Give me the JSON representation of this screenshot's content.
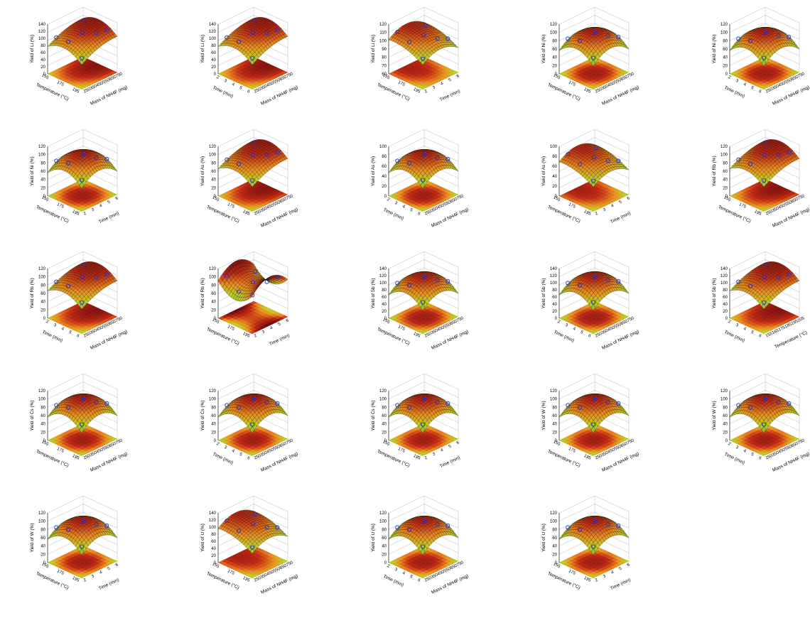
{
  "chart_data": [
    {
      "type": "surface3d",
      "zlabel": "Yield of Li (%)",
      "z_ticks": [
        "0",
        "20",
        "40",
        "60",
        "80",
        "100",
        "120",
        "140"
      ],
      "left_label": "Temperature (°C)",
      "left_ticks": [
        "155",
        "175",
        "195"
      ],
      "right_label": "Mass of NH4F (mg)",
      "right_ticks": [
        "250",
        "350",
        "450",
        "550",
        "650",
        "750"
      ],
      "peak_position": "right",
      "has_contour": true
    },
    {
      "type": "surface3d",
      "zlabel": "Yield of Li (%)",
      "z_ticks": [
        "0",
        "20",
        "40",
        "60",
        "80",
        "100",
        "120",
        "140"
      ],
      "left_label": "Time (min)",
      "left_ticks": [
        "2",
        "3",
        "4",
        "5",
        "6"
      ],
      "right_label": "Mass of NH4F (mg)",
      "right_ticks": [
        "250",
        "350",
        "450",
        "550",
        "650",
        "750"
      ],
      "peak_position": "right",
      "has_contour": true
    },
    {
      "type": "surface3d",
      "zlabel": "Yield of Li (%)",
      "z_ticks": [
        "60",
        "70",
        "80",
        "90",
        "100",
        "110",
        "120"
      ],
      "left_label": "Temperature (°C)",
      "left_ticks": [
        "155",
        "175",
        "195"
      ],
      "right_label": "Time (min)",
      "right_ticks": [
        "2",
        "3",
        "4",
        "5",
        "6"
      ],
      "peak_position": "left",
      "has_contour": true
    },
    {
      "type": "surface3d",
      "zlabel": "Yield of Ni (%)",
      "z_ticks": [
        "0",
        "20",
        "40",
        "60",
        "80",
        "100",
        "120"
      ],
      "left_label": "Temperature (°C)",
      "left_ticks": [
        "155",
        "175",
        "195"
      ],
      "right_label": "Mass of NH4F (mg)",
      "right_ticks": [
        "250",
        "350",
        "450",
        "550",
        "650",
        "750"
      ],
      "peak_position": "center",
      "has_contour": true
    },
    {
      "type": "surface3d",
      "zlabel": "Yield of Ni (%)",
      "z_ticks": [
        "0",
        "20",
        "40",
        "60",
        "80",
        "100",
        "120"
      ],
      "left_label": "Time (min)",
      "left_ticks": [
        "2",
        "3",
        "4",
        "5",
        "6"
      ],
      "right_label": "Mass of NH4F (mg)",
      "right_ticks": [
        "250",
        "350",
        "450",
        "550",
        "650",
        "750"
      ],
      "peak_position": "center",
      "has_contour": true
    },
    {
      "type": "surface3d",
      "zlabel": "Yield of Ni (%)",
      "z_ticks": [
        "0",
        "20",
        "40",
        "60",
        "80",
        "100",
        "120"
      ],
      "left_label": "Temperature (°C)",
      "left_ticks": [
        "155",
        "175",
        "195"
      ],
      "right_label": "Time (min)",
      "right_ticks": [
        "2",
        "3",
        "4",
        "5",
        "6"
      ],
      "peak_position": "center",
      "has_contour": true
    },
    {
      "type": "surface3d",
      "zlabel": "Yield of As (%)",
      "z_ticks": [
        "0",
        "20",
        "40",
        "60",
        "80",
        "100",
        "120"
      ],
      "left_label": "Temperature (°C)",
      "left_ticks": [
        "155",
        "175",
        "195"
      ],
      "right_label": "Mass of NH4F (mg)",
      "right_ticks": [
        "250",
        "350",
        "450",
        "550",
        "650",
        "750"
      ],
      "peak_position": "right",
      "has_contour": true
    },
    {
      "type": "surface3d",
      "zlabel": "Yield of As (%)",
      "z_ticks": [
        "0",
        "20",
        "40",
        "60",
        "80",
        "100"
      ],
      "left_label": "Time (min)",
      "left_ticks": [
        "2",
        "3",
        "4",
        "5",
        "6"
      ],
      "right_label": "Mass of NH4F (mg)",
      "right_ticks": [
        "250",
        "350",
        "450",
        "550",
        "650",
        "750"
      ],
      "peak_position": "center",
      "has_contour": true
    },
    {
      "type": "surface3d",
      "zlabel": "Yield of As (%)",
      "z_ticks": [
        "0",
        "20",
        "40",
        "60",
        "80",
        "100"
      ],
      "left_label": "Temperature (°C)",
      "left_ticks": [
        "155",
        "175",
        "195"
      ],
      "right_label": "Time (min)",
      "right_ticks": [
        "2",
        "3",
        "4",
        "5",
        "6"
      ],
      "peak_position": "left",
      "has_contour": true
    },
    {
      "type": "surface3d",
      "zlabel": "Yield of Rb (%)",
      "z_ticks": [
        "0",
        "20",
        "40",
        "60",
        "80",
        "100",
        "120"
      ],
      "left_label": "Temperature (°C)",
      "left_ticks": [
        "155",
        "175",
        "195"
      ],
      "right_label": "Mass of NH4F (mg)",
      "right_ticks": [
        "250",
        "350",
        "450",
        "550",
        "650",
        "750"
      ],
      "peak_position": "right",
      "has_contour": true
    },
    {
      "type": "surface3d",
      "zlabel": "Yield of Rb (%)",
      "z_ticks": [
        "0",
        "20",
        "40",
        "60",
        "80",
        "100",
        "120"
      ],
      "left_label": "Time (min)",
      "left_ticks": [
        "2",
        "3",
        "4",
        "5",
        "6"
      ],
      "right_label": "Mass of NH4F (mg)",
      "right_ticks": [
        "250",
        "350",
        "450",
        "550",
        "650",
        "750"
      ],
      "peak_position": "right",
      "has_contour": true
    },
    {
      "type": "surface3d",
      "zlabel": "Yield of Rb (%)",
      "z_ticks": [
        "0",
        "20",
        "40",
        "60",
        "80",
        "100",
        "120"
      ],
      "left_label": "Temperature (°C)",
      "left_ticks": [
        "155",
        "175",
        "195"
      ],
      "right_label": "Time (min)",
      "right_ticks": [
        "2",
        "3",
        "4",
        "5",
        "6"
      ],
      "peak_position": "saddle",
      "has_contour": true
    },
    {
      "type": "surface3d",
      "zlabel": "Yield of Sb (%)",
      "z_ticks": [
        "0",
        "20",
        "40",
        "60",
        "80",
        "100",
        "120",
        "140"
      ],
      "left_label": "Temperature (°C)",
      "left_ticks": [
        "155",
        "175",
        "195"
      ],
      "right_label": "Mass of NH4F (mg)",
      "right_ticks": [
        "250",
        "350",
        "450",
        "550",
        "650",
        "750"
      ],
      "peak_position": "center",
      "has_contour": true
    },
    {
      "type": "surface3d",
      "zlabel": "Yield of Sb (%)",
      "z_ticks": [
        "0",
        "20",
        "40",
        "60",
        "80",
        "100",
        "120",
        "140"
      ],
      "left_label": "Time (min)",
      "left_ticks": [
        "2",
        "3",
        "4",
        "5",
        "6"
      ],
      "right_label": "Mass of NH4F (mg)",
      "right_ticks": [
        "250",
        "350",
        "450",
        "550",
        "650",
        "750"
      ],
      "peak_position": "center",
      "has_contour": true
    },
    {
      "type": "surface3d",
      "zlabel": "Yield of Sb (%)",
      "z_ticks": [
        "0",
        "20",
        "40",
        "60",
        "80",
        "100",
        "120",
        "140"
      ],
      "left_label": "Time (min)",
      "left_ticks": [
        "2",
        "3",
        "4",
        "5",
        "6"
      ],
      "right_label": "Temperature (°C)",
      "right_ticks": [
        "155",
        "165",
        "175",
        "185",
        "195",
        "205"
      ],
      "peak_position": "right",
      "has_contour": true
    },
    {
      "type": "surface3d",
      "zlabel": "Yield of Cs (%)",
      "z_ticks": [
        "0",
        "20",
        "40",
        "60",
        "80",
        "100",
        "120"
      ],
      "left_label": "Temperature (°C)",
      "left_ticks": [
        "155",
        "175",
        "195"
      ],
      "right_label": "Mass of NH4F (mg)",
      "right_ticks": [
        "250",
        "350",
        "450",
        "550",
        "650",
        "750"
      ],
      "peak_position": "center",
      "has_contour": true
    },
    {
      "type": "surface3d",
      "zlabel": "Yield of Cs (%)",
      "z_ticks": [
        "0",
        "20",
        "40",
        "60",
        "80",
        "100",
        "120"
      ],
      "left_label": "Time (min)",
      "left_ticks": [
        "2",
        "3",
        "4",
        "5",
        "6"
      ],
      "right_label": "Mass of NH4F (mg)",
      "right_ticks": [
        "250",
        "350",
        "450",
        "550",
        "650",
        "750"
      ],
      "peak_position": "center",
      "has_contour": true
    },
    {
      "type": "surface3d",
      "zlabel": "Yield of Cs (%)",
      "z_ticks": [
        "0",
        "20",
        "40",
        "60",
        "80",
        "100",
        "120"
      ],
      "left_label": "Temperature (°C)",
      "left_ticks": [
        "155",
        "175",
        "195"
      ],
      "right_label": "Time (min)",
      "right_ticks": [
        "2",
        "3",
        "4",
        "5",
        "6"
      ],
      "peak_position": "center",
      "has_contour": true
    },
    {
      "type": "surface3d",
      "zlabel": "Yield of W (%)",
      "z_ticks": [
        "0",
        "20",
        "40",
        "60",
        "80",
        "100",
        "120"
      ],
      "left_label": "Temperature (°C)",
      "left_ticks": [
        "155",
        "175",
        "195"
      ],
      "right_label": "Mass of NH4F (mg)",
      "right_ticks": [
        "250",
        "350",
        "450",
        "550",
        "650",
        "750"
      ],
      "peak_position": "center",
      "has_contour": true
    },
    {
      "type": "surface3d",
      "zlabel": "Yield of W (%)",
      "z_ticks": [
        "0",
        "20",
        "40",
        "60",
        "80",
        "100",
        "120"
      ],
      "left_label": "Time (min)",
      "left_ticks": [
        "2",
        "3",
        "4",
        "5",
        "6"
      ],
      "right_label": "Mass of NH4F (mg)",
      "right_ticks": [
        "250",
        "350",
        "450",
        "550",
        "650",
        "750"
      ],
      "peak_position": "center",
      "has_contour": true
    },
    {
      "type": "surface3d",
      "zlabel": "Yield of W (%)",
      "z_ticks": [
        "0",
        "20",
        "40",
        "60",
        "80",
        "100",
        "120"
      ],
      "left_label": "Temperature (°C)",
      "left_ticks": [
        "155",
        "175",
        "195"
      ],
      "right_label": "Time (min)",
      "right_ticks": [
        "2",
        "3",
        "4",
        "5",
        "6"
      ],
      "peak_position": "center",
      "has_contour": true
    },
    {
      "type": "surface3d",
      "zlabel": "Yield of U (%)",
      "z_ticks": [
        "0",
        "20",
        "40",
        "60",
        "80",
        "100",
        "120",
        "140"
      ],
      "left_label": "Temperature (°C)",
      "left_ticks": [
        "155",
        "175",
        "195"
      ],
      "right_label": "Mass of NH4F (mg)",
      "right_ticks": [
        "250",
        "350",
        "450",
        "550",
        "650",
        "750"
      ],
      "peak_position": "left",
      "has_contour": true
    },
    {
      "type": "surface3d",
      "zlabel": "Yield of U (%)",
      "z_ticks": [
        "0",
        "20",
        "40",
        "60",
        "80",
        "100",
        "120"
      ],
      "left_label": "Time (min)",
      "left_ticks": [
        "2",
        "3",
        "4",
        "5",
        "6"
      ],
      "right_label": "Mass of NH4F (mg)",
      "right_ticks": [
        "250",
        "350",
        "450",
        "550",
        "650",
        "750"
      ],
      "peak_position": "center",
      "has_contour": true
    },
    {
      "type": "surface3d",
      "zlabel": "Yield of U (%)",
      "z_ticks": [
        "0",
        "20",
        "40",
        "60",
        "80",
        "100",
        "120"
      ],
      "left_label": "Temperature (°C)",
      "left_ticks": [
        "155",
        "175",
        "195"
      ],
      "right_label": "Time (min)",
      "right_ticks": [
        "2",
        "3",
        "4",
        "5",
        "6"
      ],
      "peak_position": "center",
      "has_contour": true
    }
  ]
}
